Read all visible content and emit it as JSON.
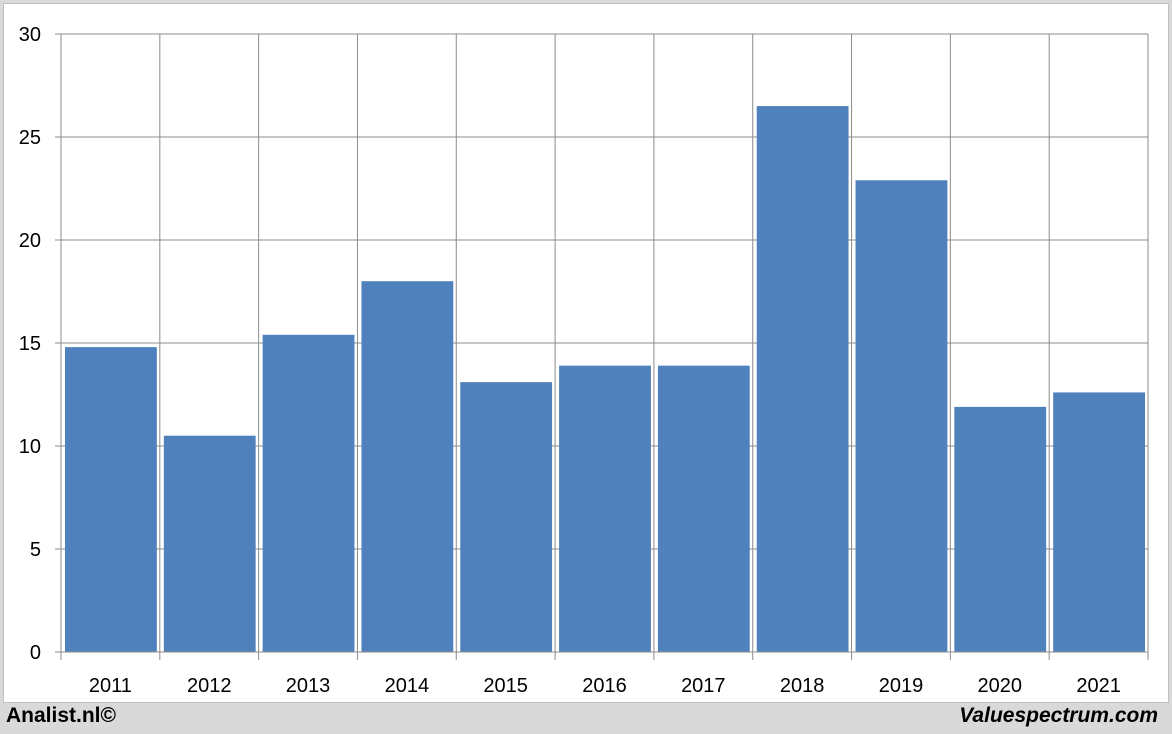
{
  "chart_data": {
    "type": "bar",
    "categories": [
      "2011",
      "2012",
      "2013",
      "2014",
      "2015",
      "2016",
      "2017",
      "2018",
      "2019",
      "2020",
      "2021"
    ],
    "values": [
      14.8,
      10.5,
      15.4,
      18.0,
      13.1,
      13.9,
      13.9,
      26.5,
      22.9,
      11.9,
      12.6
    ],
    "yticks": [
      "0",
      "5",
      "10",
      "15",
      "20",
      "25",
      "30"
    ],
    "ylim": [
      0,
      30
    ],
    "grid": true,
    "bar_color": "#4f81bd"
  },
  "footer": {
    "left": "Analist.nl©",
    "right": "Valuespectrum.com"
  }
}
